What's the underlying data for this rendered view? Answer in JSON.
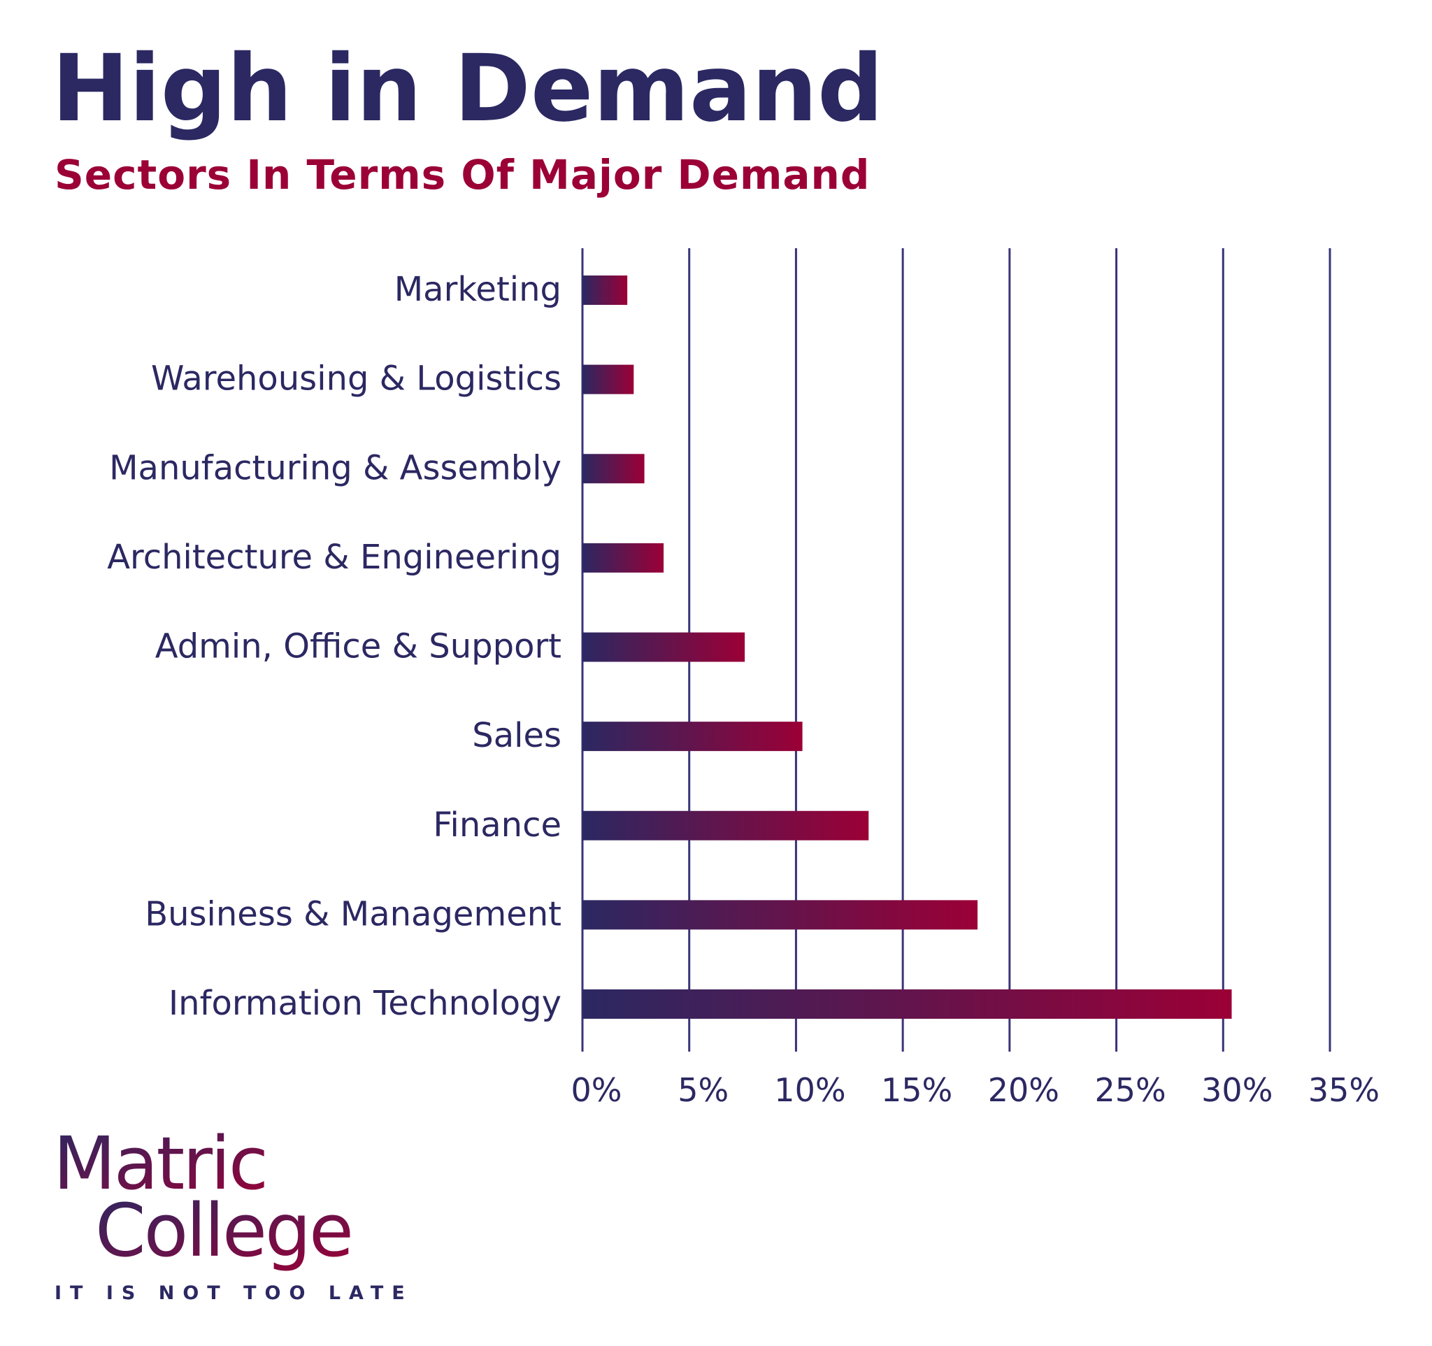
{
  "chart_data": {
    "type": "barh",
    "title": "High in Demand",
    "subtitle": "Sectors In Terms Of Major Demand",
    "categories": [
      "Marketing",
      "Warehousing & Logistics",
      "Manufacturing & Assembly",
      "Architecture & Engineering",
      "Admin, Office & Support",
      "Sales",
      "Finance",
      "Business & Management",
      "Information Technology"
    ],
    "values": [
      2.1,
      2.4,
      2.9,
      3.8,
      7.6,
      10.3,
      13.4,
      18.5,
      30.4
    ],
    "color": [
      "#2b2862",
      "#9b0036"
    ],
    "xlim": [
      0,
      35
    ],
    "xticks": [
      {
        "value": 0,
        "label": "0%"
      },
      {
        "value": 5,
        "label": "5%"
      },
      {
        "value": 10,
        "label": "10%"
      },
      {
        "value": 15,
        "label": "15%"
      },
      {
        "value": 20,
        "label": "20%"
      },
      {
        "value": 25,
        "label": "25%"
      },
      {
        "value": 30,
        "label": "30%"
      },
      {
        "value": 35,
        "label": "35%"
      }
    ],
    "grid": true
  },
  "logo": {
    "line1": "Matric",
    "line2": "College",
    "tagline": "IT IS NOT TOO LATE"
  }
}
